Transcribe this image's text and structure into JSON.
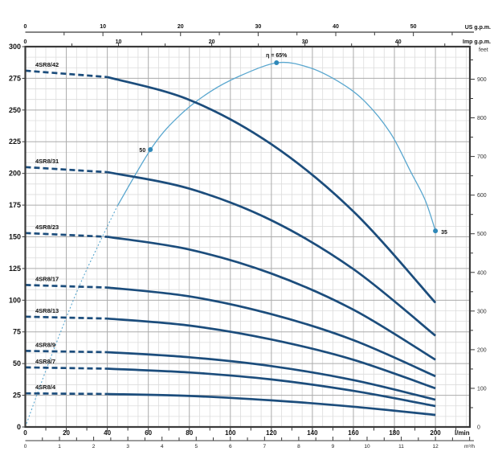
{
  "chart_data": {
    "type": "line",
    "description": "Submersible pump performance curves: head vs flow for 4SR8 series, with efficiency curve",
    "x_axis_lmin": {
      "title": "l/min",
      "tick_labels": [
        0,
        20,
        40,
        60,
        80,
        100,
        120,
        140,
        160,
        180,
        200
      ],
      "range": [
        0,
        217
      ],
      "minor_step": 5,
      "major_step": 20
    },
    "x_axis_m3h": {
      "title": "m³/h",
      "tick_labels": [
        0,
        1,
        2,
        3,
        4,
        5,
        6,
        7,
        8,
        9,
        10,
        11,
        12
      ],
      "minor_step": 0.5
    },
    "x_axis_us_gpm": {
      "title": "US g.p.m.",
      "tick_labels": [
        0,
        10,
        20,
        30,
        40,
        50
      ],
      "minor_step": 5
    },
    "x_axis_imp_gpm": {
      "title": "Imp g.p.m.",
      "tick_labels": [
        0,
        10,
        20,
        30,
        40
      ],
      "minor_step": 5
    },
    "y_axis_m": {
      "tick_labels": [
        0,
        25,
        50,
        75,
        100,
        125,
        150,
        175,
        200,
        225,
        250,
        275,
        300
      ],
      "range": [
        0,
        300
      ],
      "minor_step": 8.333,
      "major_step": 25
    },
    "y_axis_feet": {
      "title": "feet",
      "tick_labels": [
        0,
        100,
        200,
        300,
        400,
        500,
        600,
        700,
        800,
        900
      ],
      "minor_step_ft": 50
    },
    "conversions": {
      "lmin_per_us_gpm": 3.785,
      "lmin_per_imp_gpm": 4.546,
      "lmin_per_m3h": 16.667,
      "m_per_foot": 0.3048
    },
    "flows_lmin": [
      0,
      40,
      80,
      120,
      160,
      200
    ],
    "dashed_below_lmin": 40,
    "series": [
      {
        "name": "4SR8/42",
        "heads_m": [
          281,
          276,
          258,
          223,
          170,
          98
        ]
      },
      {
        "name": "4SR8/31",
        "heads_m": [
          205,
          201,
          188,
          163,
          124.5,
          72
        ]
      },
      {
        "name": "4SR8/23",
        "heads_m": [
          153,
          150,
          140,
          121,
          92.5,
          53
        ]
      },
      {
        "name": "4SR8/17",
        "heads_m": [
          112,
          110,
          103,
          89,
          68.5,
          40
        ]
      },
      {
        "name": "4SR8/13",
        "heads_m": [
          87,
          85.5,
          80,
          69,
          53,
          30.5
        ]
      },
      {
        "name": "4SR8/9",
        "heads_m": [
          60,
          59,
          55,
          48,
          37,
          21.5
        ]
      },
      {
        "name": "4SR8/7",
        "heads_m": [
          47,
          46,
          43,
          37.5,
          28.5,
          16.5
        ]
      },
      {
        "name": "4SR8/4",
        "heads_m": [
          26.5,
          26,
          24.5,
          21,
          16,
          9.5
        ]
      }
    ],
    "efficiency_curve": {
      "dotted_below_lmin": 45,
      "eta_axis_m_equivalent_per_pct": 4.42,
      "points_q_eta": [
        [
          0,
          0
        ],
        [
          12,
          12
        ],
        [
          25,
          24
        ],
        [
          35,
          32
        ],
        [
          45,
          39.5
        ],
        [
          62,
          50
        ],
        [
          75,
          55.5
        ],
        [
          90,
          59.8
        ],
        [
          105,
          62.7
        ],
        [
          123,
          65
        ],
        [
          138,
          64.2
        ],
        [
          152,
          61.8
        ],
        [
          165,
          58.3
        ],
        [
          178,
          52.5
        ],
        [
          188,
          45.5
        ],
        [
          195,
          40.5
        ],
        [
          200,
          35
        ]
      ],
      "markers": [
        {
          "q_lmin": 61,
          "eta_pct": 49.5,
          "label": "50",
          "label_pos": "left"
        },
        {
          "q_lmin": 122.5,
          "eta_pct": 65,
          "label": "η = 65%",
          "label_pos": "top"
        },
        {
          "q_lmin": 200,
          "eta_pct": 35,
          "label": "35",
          "label_pos": "right"
        }
      ]
    },
    "colors": {
      "pump_curve": "#1c4d7c",
      "efficiency_curve": "#5aa7cf",
      "efficiency_marker": "#2f88b8",
      "grid_minor": "#dcdcdc",
      "grid_major": "#ababab",
      "border": "#3a3a3a",
      "text": "#111111"
    }
  }
}
